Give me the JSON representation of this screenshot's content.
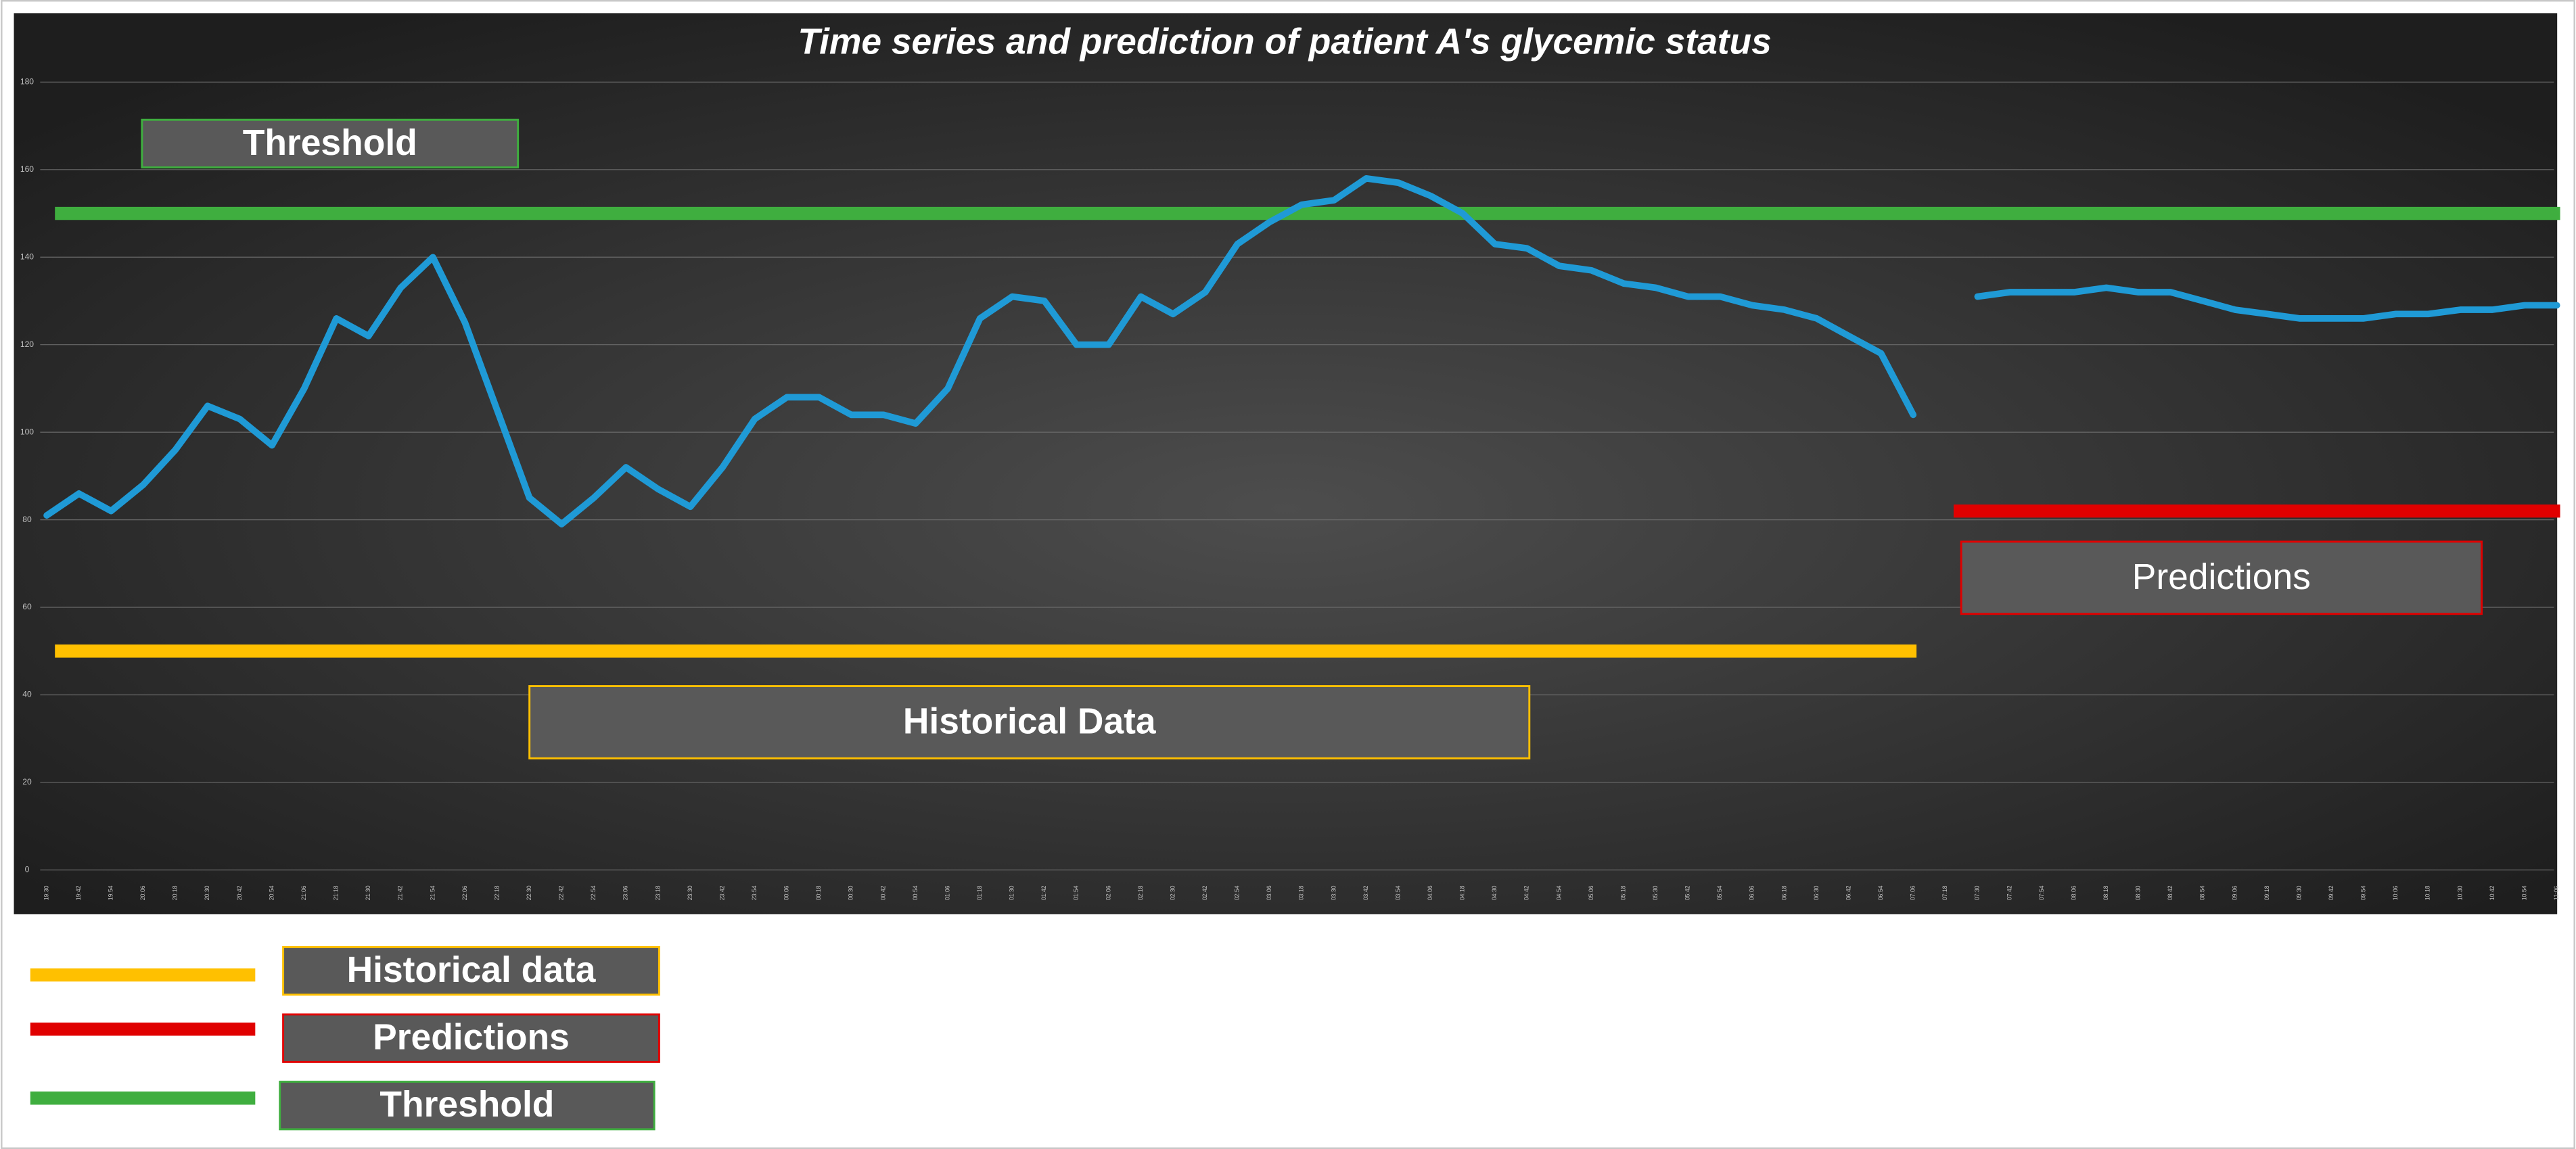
{
  "chart_data": {
    "type": "line",
    "title": "Time series and prediction of patient A's glycemic status",
    "categories": [
      "19:30",
      "19:42",
      "19:54",
      "20:06",
      "20:18",
      "20:30",
      "20:42",
      "20:54",
      "21:06",
      "21:18",
      "21:30",
      "21:42",
      "21:54",
      "22:06",
      "22:18",
      "22:30",
      "22:42",
      "22:54",
      "23:06",
      "23:18",
      "23:30",
      "23:42",
      "23:54",
      "00:06",
      "00:18",
      "00:30",
      "00:42",
      "00:54",
      "01:06",
      "01:18",
      "01:30",
      "01:42",
      "01:54",
      "02:06",
      "02:18",
      "02:30",
      "02:42",
      "02:54",
      "03:06",
      "03:18",
      "03:30",
      "03:42",
      "03:54",
      "04:06",
      "04:18",
      "04:30",
      "04:42",
      "04:54",
      "05:06",
      "05:18",
      "05:30",
      "05:42",
      "05:54",
      "06:06",
      "06:18",
      "06:30",
      "06:42",
      "06:54",
      "07:06",
      "07:18",
      "07:30",
      "07:42",
      "07:54",
      "08:06",
      "08:18",
      "08:30",
      "08:42",
      "08:54",
      "09:06",
      "09:18",
      "09:30",
      "09:42",
      "09:54",
      "10:06",
      "10:18",
      "10:30",
      "10:42",
      "10:54",
      "11:06"
    ],
    "values": [
      81,
      86,
      82,
      88,
      96,
      106,
      103,
      97,
      110,
      126,
      122,
      133,
      140,
      125,
      105,
      85,
      79,
      85,
      92,
      87,
      83,
      92,
      103,
      108,
      108,
      104,
      104,
      102,
      110,
      126,
      131,
      130,
      120,
      120,
      131,
      127,
      132,
      143,
      148,
      152,
      153,
      158,
      157,
      154,
      150,
      143,
      142,
      138,
      137,
      134,
      133,
      131,
      131,
      129,
      128,
      126,
      122,
      118,
      104,
      null,
      131,
      132,
      132,
      132,
      133,
      132,
      132,
      130,
      128,
      127,
      126,
      126,
      126,
      127,
      127,
      128,
      128,
      129,
      129
    ],
    "color": "#1f9ad6",
    "ylim": [
      0,
      180
    ],
    "yticks": [
      0,
      20,
      40,
      60,
      80,
      100,
      120,
      140,
      160,
      180
    ],
    "grid": true,
    "annotations": [
      {
        "label": "Threshold",
        "value": 150,
        "color": "#3fae3f",
        "from": "19:30",
        "to": "11:06"
      },
      {
        "label": "Historical Data",
        "value": 50,
        "color": "#ffc000",
        "from": "19:30",
        "to": "07:06"
      },
      {
        "label": "Predictions",
        "value": 82,
        "color": "#e00000",
        "from": "07:18",
        "to": "11:06"
      }
    ],
    "legend": [
      {
        "label": "Historical data",
        "color": "#ffc000"
      },
      {
        "label": "Predictions",
        "color": "#e00000"
      },
      {
        "label": "Threshold",
        "color": "#3fae3f"
      }
    ]
  }
}
